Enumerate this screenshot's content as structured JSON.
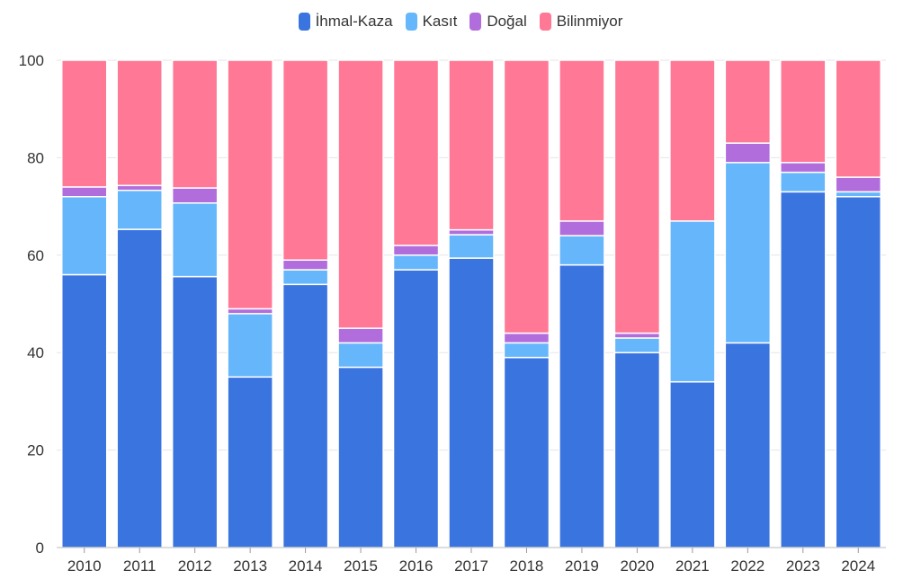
{
  "chart_data": {
    "type": "bar",
    "stacked": true,
    "categories": [
      "2010",
      "2011",
      "2012",
      "2013",
      "2014",
      "2015",
      "2016",
      "2017",
      "2018",
      "2019",
      "2020",
      "2021",
      "2022",
      "2023",
      "2024"
    ],
    "series": [
      {
        "name": "İhmal-Kaza",
        "color": "#3a74df",
        "values": [
          56,
          65.3,
          55.6,
          35,
          54,
          37,
          57,
          59.4,
          39,
          58,
          40,
          34,
          42,
          73,
          72
        ]
      },
      {
        "name": "Kasıt",
        "color": "#66b6fc",
        "values": [
          16,
          8,
          15.1,
          13,
          3,
          5,
          3,
          4.8,
          3,
          6,
          3,
          33,
          37,
          4,
          1
        ]
      },
      {
        "name": "Doğal",
        "color": "#b26ddd",
        "values": [
          2,
          1,
          3.1,
          1,
          2,
          3,
          2,
          1,
          2,
          3,
          1,
          0,
          4,
          2,
          3
        ]
      },
      {
        "name": "Bilinmiyor",
        "color": "#ff7895",
        "values": [
          26,
          25.7,
          26.2,
          51,
          41,
          55,
          38,
          34.8,
          56,
          33,
          56,
          33,
          17,
          21,
          24
        ]
      }
    ],
    "ylim": [
      0,
      100
    ],
    "yticks": [
      0,
      20,
      40,
      60,
      80,
      100
    ],
    "grid": true,
    "legend_position": "top-center",
    "title": "",
    "xlabel": "",
    "ylabel": ""
  }
}
